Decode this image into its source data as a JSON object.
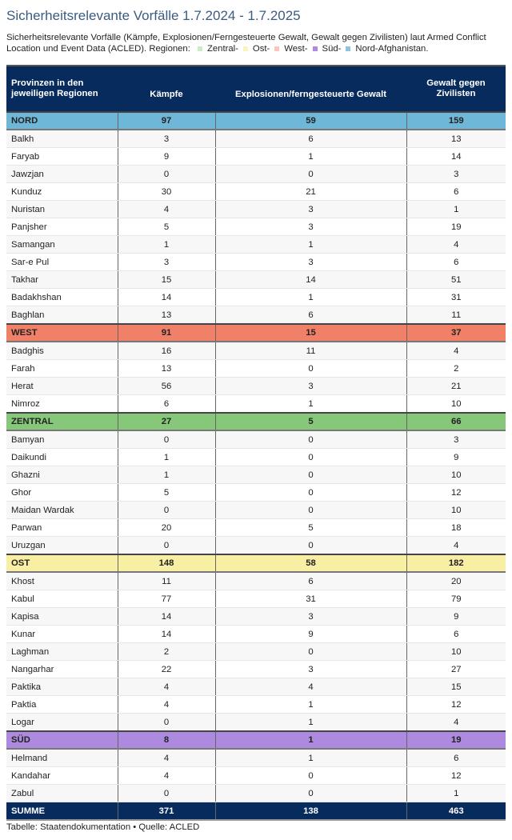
{
  "title": "Sicherheitsrelevante Vorfälle 1.7.2024 - 1.7.2025",
  "description": "Sicherheitsrelevante Vorfälle (Kämpfe, Explosionen/Ferngesteuerte Gewalt, Gewalt gegen Zivilisten) laut Armed Conflict Location und Event Data (ACLED). Regionen:",
  "legend": [
    {
      "label": "Zentral-",
      "color": "#c9ecc4"
    },
    {
      "label": "Ost-",
      "color": "#fbf3b8"
    },
    {
      "label": "West-",
      "color": "#f8c6bd"
    },
    {
      "label": "Süd-",
      "color": "#ae89e0"
    },
    {
      "label": "Nord-Afghanistan.",
      "color": "#8cc3dd"
    }
  ],
  "footer": "Tabelle: Staatendokumentation • Quelle: ACLED",
  "chart_data": {
    "type": "table",
    "columns": [
      "Provinzen in den jeweiligen Regionen",
      "Kämpfe",
      "Explosionen/ferngesteuerte Gewalt",
      "Gewalt gegen Zivilisten"
    ],
    "regions": [
      {
        "name": "NORD",
        "color": "#6fb7d9",
        "values": [
          97,
          59,
          159
        ],
        "provinces": [
          [
            "Balkh",
            3,
            6,
            13
          ],
          [
            "Faryab",
            9,
            1,
            14
          ],
          [
            "Jawzjan",
            0,
            0,
            3
          ],
          [
            "Kunduz",
            30,
            21,
            6
          ],
          [
            "Nuristan",
            4,
            3,
            1
          ],
          [
            "Panjsher",
            5,
            3,
            19
          ],
          [
            "Samangan",
            1,
            1,
            4
          ],
          [
            "Sar-e Pul",
            3,
            3,
            6
          ],
          [
            "Takhar",
            15,
            14,
            51
          ],
          [
            "Badakhshan",
            14,
            1,
            31
          ],
          [
            "Baghlan",
            13,
            6,
            11
          ]
        ]
      },
      {
        "name": "WEST",
        "color": "#f08068",
        "values": [
          91,
          15,
          37
        ],
        "provinces": [
          [
            "Badghis",
            16,
            11,
            4
          ],
          [
            "Farah",
            13,
            0,
            2
          ],
          [
            "Herat",
            56,
            3,
            21
          ],
          [
            "Nimroz",
            6,
            1,
            10
          ]
        ]
      },
      {
        "name": "ZENTRAL",
        "color": "#87c77a",
        "values": [
          27,
          5,
          66
        ],
        "provinces": [
          [
            "Bamyan",
            0,
            0,
            3
          ],
          [
            "Daikundi",
            1,
            0,
            9
          ],
          [
            "Ghazni",
            1,
            0,
            10
          ],
          [
            "Ghor",
            5,
            0,
            12
          ],
          [
            "Maidan Wardak",
            0,
            0,
            10
          ],
          [
            "Parwan",
            20,
            5,
            18
          ],
          [
            "Uruzgan",
            0,
            0,
            4
          ]
        ]
      },
      {
        "name": "OST",
        "color": "#f8eea4",
        "values": [
          148,
          58,
          182
        ],
        "provinces": [
          [
            "Khost",
            11,
            6,
            20
          ],
          [
            "Kabul",
            77,
            31,
            79
          ],
          [
            "Kapisa",
            14,
            3,
            9
          ],
          [
            "Kunar",
            14,
            9,
            6
          ],
          [
            "Laghman",
            2,
            0,
            10
          ],
          [
            "Nangarhar",
            22,
            3,
            27
          ],
          [
            "Paktika",
            4,
            4,
            15
          ],
          [
            "Paktia",
            4,
            1,
            12
          ],
          [
            "Logar",
            0,
            1,
            4
          ]
        ]
      },
      {
        "name": "SÜD",
        "color": "#ae89e0",
        "values": [
          8,
          1,
          19
        ],
        "provinces": [
          [
            "Helmand",
            4,
            1,
            6
          ],
          [
            "Kandahar",
            4,
            0,
            12
          ],
          [
            "Zabul",
            0,
            0,
            1
          ]
        ]
      }
    ],
    "total": {
      "label": "SUMME",
      "values": [
        371,
        138,
        463
      ]
    }
  }
}
